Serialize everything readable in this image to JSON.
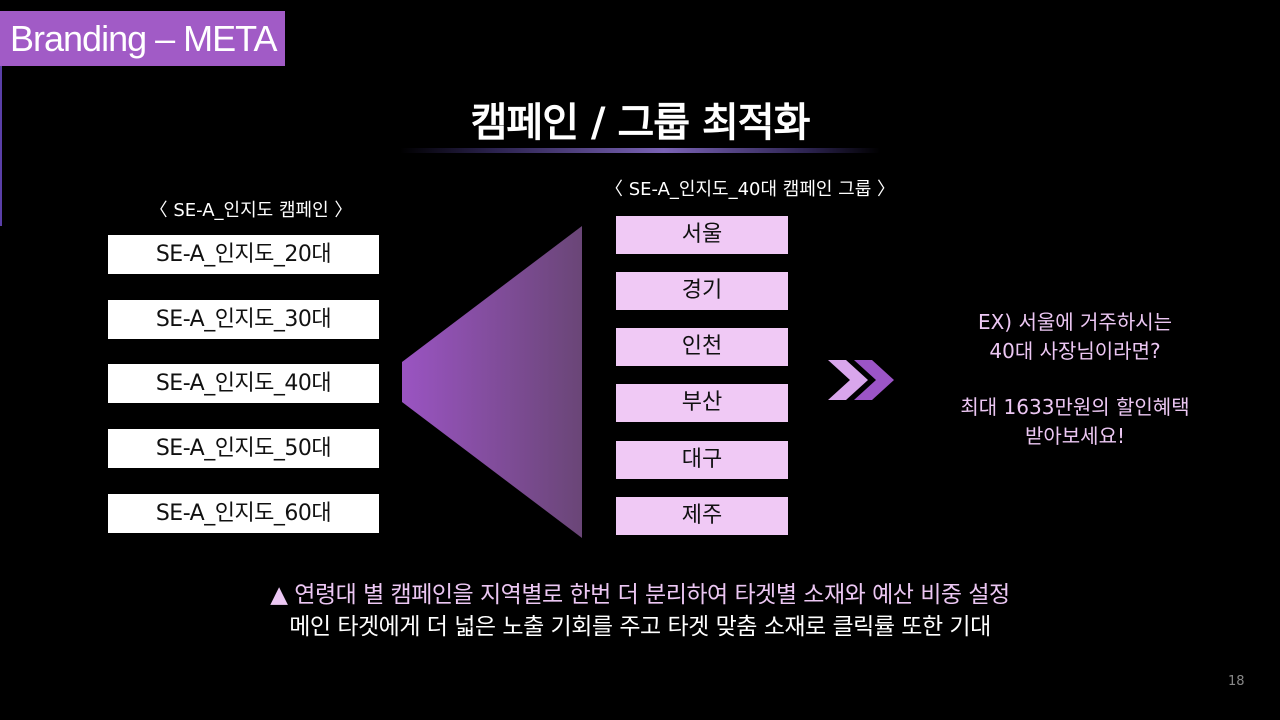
{
  "tag": "Branding – META",
  "title": "캠페인 / 그룹 최적화",
  "left_heading": "〈 SE-A_인지도 캠페인 〉",
  "right_heading": "〈 SE-A_인지도_40대 캠페인 그룹 〉",
  "campaigns": [
    "SE-A_인지도_20대",
    "SE-A_인지도_30대",
    "SE-A_인지도_40대",
    "SE-A_인지도_50대",
    "SE-A_인지도_60대"
  ],
  "regions": [
    "서울",
    "경기",
    "인천",
    "부산",
    "대구",
    "제주"
  ],
  "example": {
    "line1": "EX) 서울에 거주하시는",
    "line2": "40대 사장님이라면?",
    "line3": "최대 1633만원의 할인혜택",
    "line4": "받아보세요!"
  },
  "bottom": {
    "line1": "▲ 연령대 별 캠페인을 지역별로 한번 더 분리하여 타겟별 소재와 예산 비중 설정",
    "line2": "메인 타겟에게 더 넓은 노출 기회를 주고 타겟 맞춤 소재로 클릭률 또한 기대"
  },
  "page_number": "18",
  "colors": {
    "accent": "#a15bc6",
    "region_box": "#f0c9f5",
    "highlight_text": "#ecc7f3"
  }
}
